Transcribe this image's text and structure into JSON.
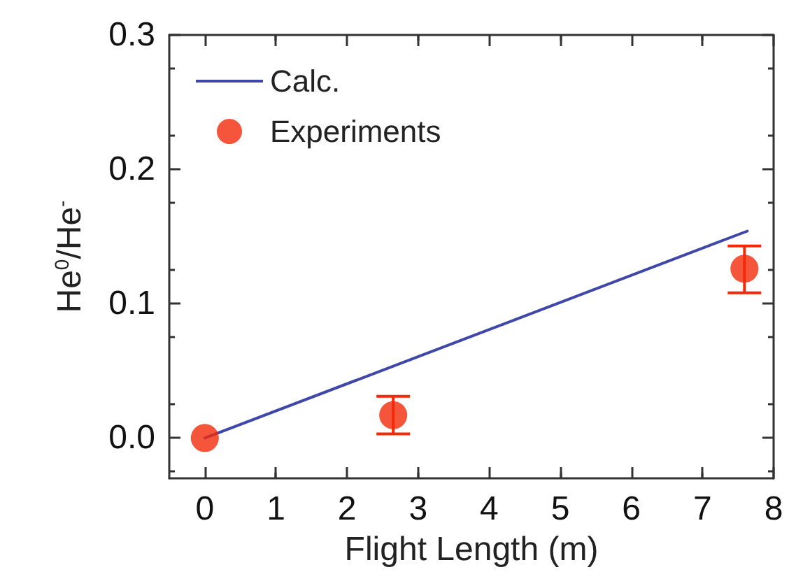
{
  "chart_data": {
    "type": "scatter",
    "xlabel": "Flight Length (m)",
    "ylabel": "He$^{0}$/He$^{-}$",
    "xlim": [
      -0.5,
      8
    ],
    "xticks": [
      0,
      1,
      2,
      3,
      4,
      5,
      6,
      7,
      8
    ],
    "ylim": [
      -0.03,
      0.3
    ],
    "yticks": [
      {
        "value": 0,
        "label": "0.0"
      },
      0.1,
      0.2,
      0.3
    ],
    "series": [
      {
        "name": "Calc.",
        "type": "line",
        "color": "#3f48a8",
        "x": [
          0,
          7.63
        ],
        "values": [
          0,
          0.154
        ],
        "marker": "none"
      },
      {
        "name": "Experiments",
        "color": "#f22a0a",
        "x": [
          0,
          2.65,
          7.59
        ],
        "values": [
          0,
          0.017,
          0.126
        ],
        "errors": [
          null,
          [
            0.003,
            0.031
          ],
          [
            0.108,
            0.143
          ]
        ],
        "marker": "circle"
      }
    ],
    "legend": "top left",
    "grid": false
  }
}
